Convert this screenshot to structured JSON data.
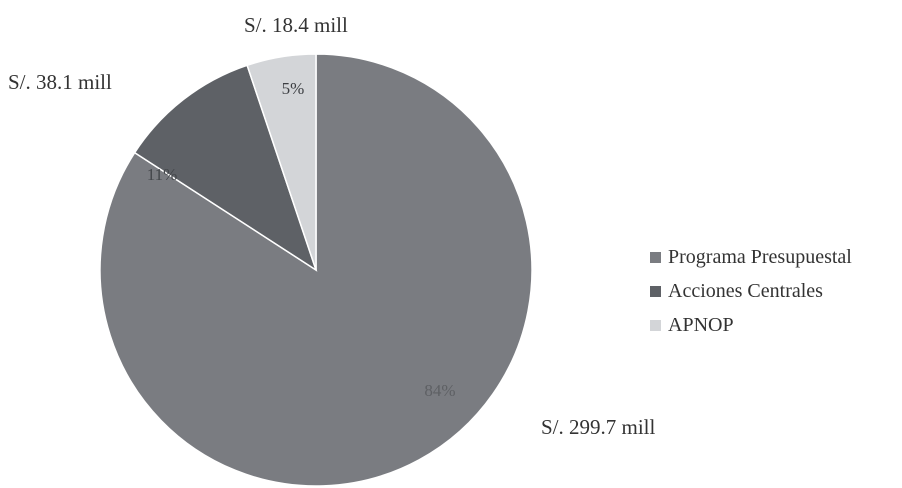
{
  "chart_data": {
    "type": "pie",
    "title": "",
    "slices": [
      {
        "name": "Programa Presupuestal",
        "value": 299.7,
        "percent_label": "84%",
        "amount_label": "S/. 299.7 mill",
        "color": "#7a7c81",
        "pct_color": "#5e6064"
      },
      {
        "name": "Acciones Centrales",
        "value": 38.1,
        "percent_label": "11%",
        "amount_label": "S/. 38.1 mill",
        "color": "#5e6166",
        "pct_color": "#44474b"
      },
      {
        "name": "APNOP",
        "value": 18.4,
        "percent_label": "5%",
        "amount_label": "S/. 18.4 mill",
        "color": "#d3d5d8",
        "pct_color": "#3c3e42"
      }
    ],
    "legend_position": "right"
  }
}
